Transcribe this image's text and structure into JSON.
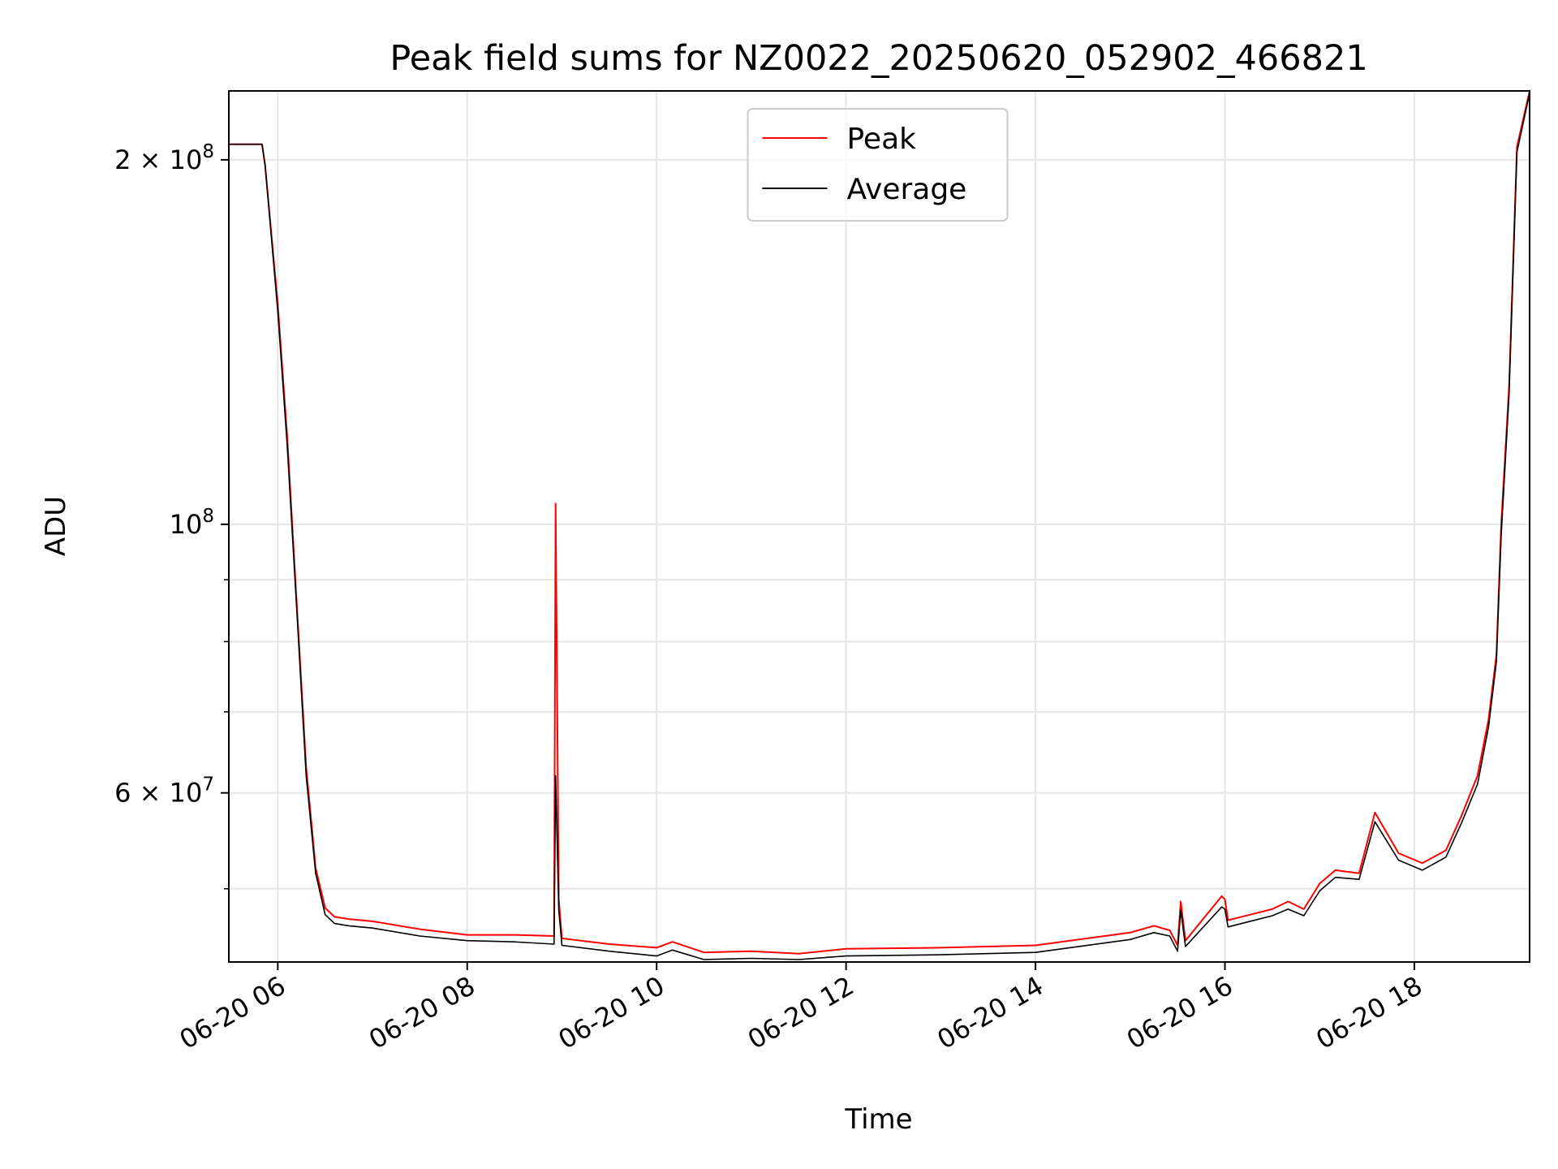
{
  "chart_data": {
    "type": "line",
    "title": "Peak field sums for NZ0022_20250620_052902_466821",
    "xlabel": "Time",
    "ylabel": "ADU",
    "y_scale": "log",
    "xlim": [
      "2025-06-20T05:29",
      "2025-06-20T19:13"
    ],
    "ylim": [
      43500000,
      228000000
    ],
    "grid": true,
    "legend": "upper center",
    "x_ticks": [
      {
        "t": "2025-06-20T06:00",
        "label": "06-20 06"
      },
      {
        "t": "2025-06-20T08:00",
        "label": "06-20 08"
      },
      {
        "t": "2025-06-20T10:00",
        "label": "06-20 10"
      },
      {
        "t": "2025-06-20T12:00",
        "label": "06-20 12"
      },
      {
        "t": "2025-06-20T14:00",
        "label": "06-20 14"
      },
      {
        "t": "2025-06-20T16:00",
        "label": "06-20 16"
      },
      {
        "t": "2025-06-20T18:00",
        "label": "06-20 18"
      }
    ],
    "y_ticks": [
      {
        "value": 60000000,
        "base": "6",
        "exp": "7"
      },
      {
        "value": 100000000,
        "base": "10",
        "exp": "8"
      },
      {
        "value": 200000000,
        "base": "2",
        "exp": "8"
      }
    ],
    "y_minor_ticks": [
      50000000,
      70000000,
      80000000,
      90000000
    ],
    "series": [
      {
        "name": "Peak",
        "color": "#ff0000",
        "x": [
          "2025-06-20T05:29",
          "2025-06-20T05:50",
          "2025-06-20T05:52",
          "2025-06-20T06:00",
          "2025-06-20T06:06",
          "2025-06-20T06:12",
          "2025-06-20T06:18",
          "2025-06-20T06:24",
          "2025-06-20T06:30",
          "2025-06-20T06:36",
          "2025-06-20T06:45",
          "2025-06-20T07:00",
          "2025-06-20T07:30",
          "2025-06-20T08:00",
          "2025-06-20T08:30",
          "2025-06-20T08:55",
          "2025-06-20T08:56",
          "2025-06-20T08:58",
          "2025-06-20T09:00",
          "2025-06-20T09:30",
          "2025-06-20T10:00",
          "2025-06-20T10:10",
          "2025-06-20T10:30",
          "2025-06-20T11:00",
          "2025-06-20T11:30",
          "2025-06-20T12:00",
          "2025-06-20T13:00",
          "2025-06-20T14:00",
          "2025-06-20T15:00",
          "2025-06-20T15:15",
          "2025-06-20T15:25",
          "2025-06-20T15:30",
          "2025-06-20T15:32",
          "2025-06-20T15:35",
          "2025-06-20T15:58",
          "2025-06-20T16:00",
          "2025-06-20T16:02",
          "2025-06-20T16:30",
          "2025-06-20T16:40",
          "2025-06-20T16:50",
          "2025-06-20T17:00",
          "2025-06-20T17:10",
          "2025-06-20T17:25",
          "2025-06-20T17:35",
          "2025-06-20T17:50",
          "2025-06-20T18:05",
          "2025-06-20T18:20",
          "2025-06-20T18:30",
          "2025-06-20T18:40",
          "2025-06-20T18:47",
          "2025-06-20T18:52",
          "2025-06-20T18:55",
          "2025-06-20T19:00",
          "2025-06-20T19:05",
          "2025-06-20T19:13"
        ],
        "y": [
          206000000,
          206000000,
          198000000,
          152000000,
          118000000,
          86000000,
          63000000,
          52000000,
          48200000,
          47400000,
          47200000,
          47000000,
          46300000,
          45800000,
          45800000,
          45700000,
          104000000,
          49000000,
          45500000,
          45000000,
          44700000,
          45200000,
          44300000,
          44400000,
          44200000,
          44600000,
          44700000,
          44900000,
          46000000,
          46600000,
          46200000,
          44900000,
          48800000,
          45300000,
          49300000,
          49000000,
          47100000,
          48100000,
          48800000,
          48100000,
          50500000,
          51800000,
          51500000,
          57800000,
          53500000,
          52500000,
          53800000,
          57500000,
          62000000,
          69000000,
          78000000,
          100000000,
          130000000,
          205000000,
          228000000
        ]
      },
      {
        "name": "Average",
        "color": "#000000",
        "x": [
          "2025-06-20T05:29",
          "2025-06-20T05:50",
          "2025-06-20T05:52",
          "2025-06-20T06:00",
          "2025-06-20T06:06",
          "2025-06-20T06:12",
          "2025-06-20T06:18",
          "2025-06-20T06:24",
          "2025-06-20T06:30",
          "2025-06-20T06:36",
          "2025-06-20T06:45",
          "2025-06-20T07:00",
          "2025-06-20T07:30",
          "2025-06-20T08:00",
          "2025-06-20T08:30",
          "2025-06-20T08:55",
          "2025-06-20T08:56",
          "2025-06-20T08:58",
          "2025-06-20T09:00",
          "2025-06-20T09:30",
          "2025-06-20T10:00",
          "2025-06-20T10:10",
          "2025-06-20T10:30",
          "2025-06-20T11:00",
          "2025-06-20T11:30",
          "2025-06-20T12:00",
          "2025-06-20T13:00",
          "2025-06-20T14:00",
          "2025-06-20T15:00",
          "2025-06-20T15:15",
          "2025-06-20T15:25",
          "2025-06-20T15:30",
          "2025-06-20T15:32",
          "2025-06-20T15:35",
          "2025-06-20T15:58",
          "2025-06-20T16:00",
          "2025-06-20T16:02",
          "2025-06-20T16:30",
          "2025-06-20T16:40",
          "2025-06-20T16:50",
          "2025-06-20T17:00",
          "2025-06-20T17:10",
          "2025-06-20T17:25",
          "2025-06-20T17:35",
          "2025-06-20T17:50",
          "2025-06-20T18:05",
          "2025-06-20T18:20",
          "2025-06-20T18:30",
          "2025-06-20T18:40",
          "2025-06-20T18:47",
          "2025-06-20T18:52",
          "2025-06-20T18:55",
          "2025-06-20T19:00",
          "2025-06-20T19:05",
          "2025-06-20T19:13"
        ],
        "y": [
          206000000,
          206000000,
          198000000,
          150000000,
          116000000,
          85000000,
          62000000,
          51500000,
          47600000,
          46800000,
          46600000,
          46400000,
          45700000,
          45300000,
          45200000,
          45000000,
          62000000,
          48000000,
          44900000,
          44400000,
          44000000,
          44500000,
          43700000,
          43800000,
          43700000,
          44000000,
          44100000,
          44300000,
          45400000,
          46000000,
          45700000,
          44400000,
          48000000,
          44800000,
          48300000,
          48100000,
          46500000,
          47500000,
          48100000,
          47500000,
          49800000,
          51100000,
          50900000,
          56800000,
          52800000,
          51800000,
          53100000,
          56700000,
          61000000,
          68000000,
          77000000,
          98000000,
          128000000,
          203000000,
          227000000
        ]
      }
    ]
  }
}
